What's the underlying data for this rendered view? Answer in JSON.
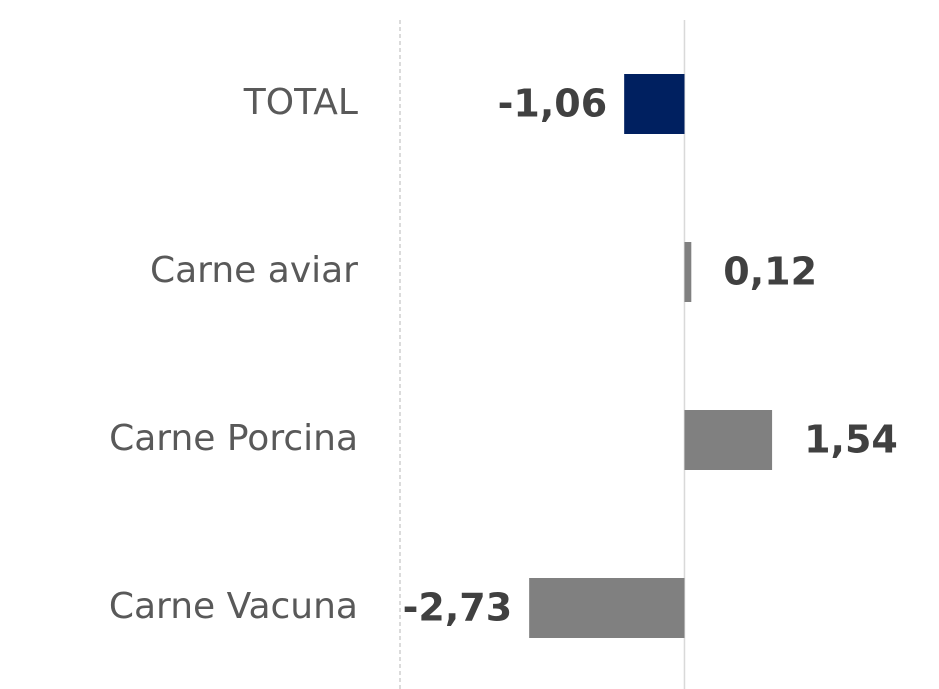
{
  "chart_data": {
    "type": "barh",
    "categories": [
      "TOTAL",
      "Carne aviar",
      "Carne Porcina",
      "Carne Vacuna"
    ],
    "values": [
      -1.06,
      0.12,
      1.54,
      -2.73
    ],
    "value_labels": [
      "-1,06",
      "0,12",
      "1,54",
      "-2,73"
    ],
    "colors": [
      "#002060",
      "#808080",
      "#808080",
      "#808080"
    ],
    "xlim": [
      -5,
      4.5
    ]
  }
}
